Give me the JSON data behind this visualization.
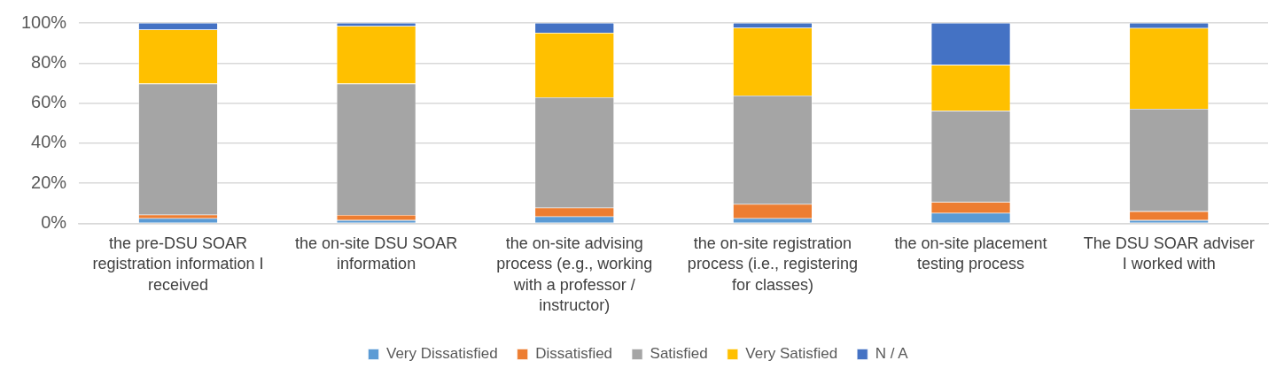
{
  "chart_data": {
    "type": "bar",
    "stacked": true,
    "categories": [
      "the pre-DSU SOAR registration information I received",
      "the on-site DSU SOAR information",
      "the on-site advising process (e.g., working with a professor / instructor)",
      "the on-site registration process (i.e., registering for classes)",
      "the on-site placement testing process",
      "The DSU SOAR adviser I worked with"
    ],
    "series": [
      {
        "name": "Very Dissatisfied",
        "color": "#5b9bd5",
        "values": [
          2.5,
          1.6,
          3.4,
          2.5,
          5.2,
          1.6
        ]
      },
      {
        "name": "Dissatisfied",
        "color": "#ed7d31",
        "values": [
          1.8,
          2.6,
          4.4,
          7.1,
          5.4,
          4.4
        ]
      },
      {
        "name": "Satisfied",
        "color": "#a5a5a5",
        "values": [
          65.4,
          65.5,
          55.1,
          54.2,
          45.6,
          51.2
        ]
      },
      {
        "name": "Very Satisfied",
        "color": "#ffc000",
        "values": [
          27,
          28.8,
          32.2,
          33.8,
          22.9,
          40.3
        ]
      },
      {
        "name": "N / A",
        "color": "#4472c4",
        "values": [
          3.3,
          1.5,
          4.9,
          2.4,
          20.9,
          2.5
        ]
      }
    ],
    "ylim": [
      0,
      100
    ],
    "yticks": [
      {
        "value": 0,
        "label": "0%"
      },
      {
        "value": 20,
        "label": "20%"
      },
      {
        "value": 40,
        "label": "40%"
      },
      {
        "value": 60,
        "label": "60%"
      },
      {
        "value": 80,
        "label": "80%"
      },
      {
        "value": 100,
        "label": "100%"
      }
    ],
    "grid": "y",
    "legend": "bottom"
  }
}
